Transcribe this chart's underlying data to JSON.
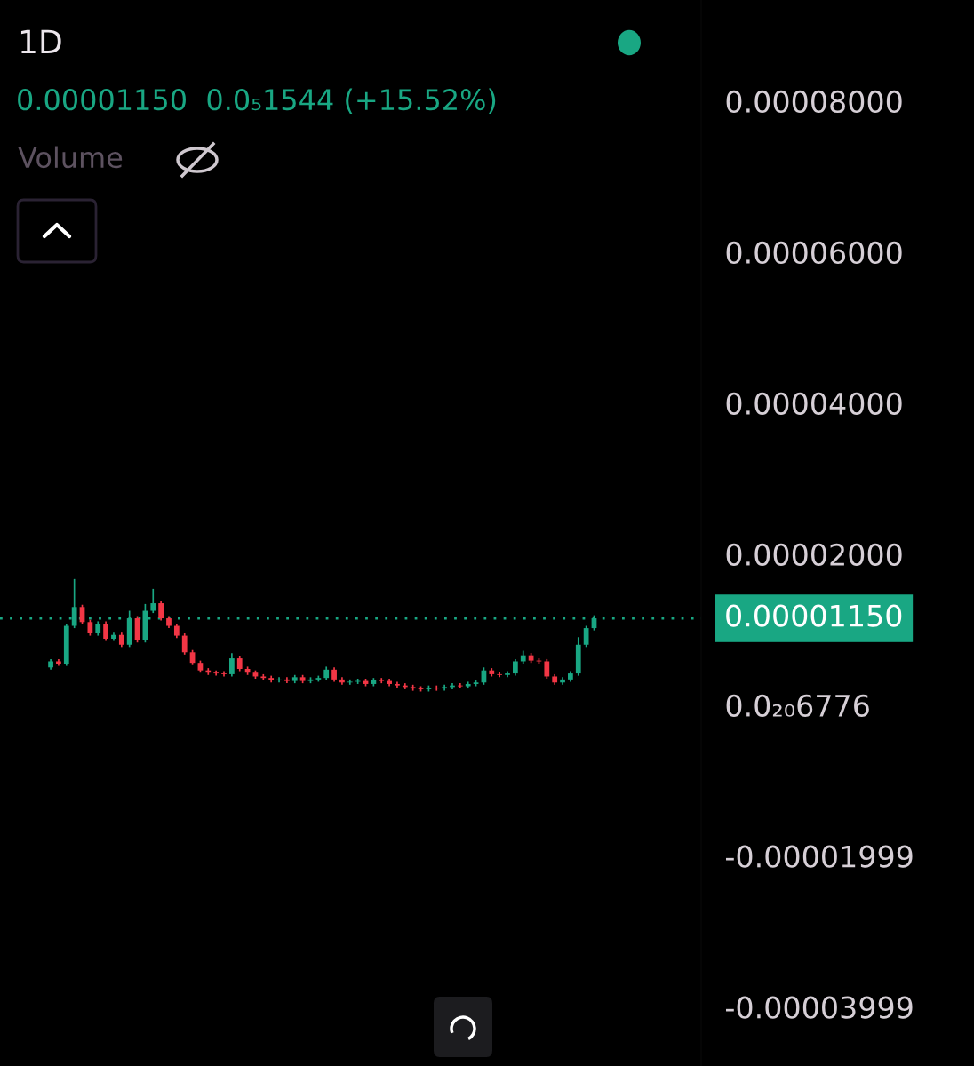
{
  "chart_data": {
    "type": "candlestick",
    "title": "1D",
    "annotations": [
      "0.00001150  0.0₅1544 (+15.52%)",
      "Volume"
    ],
    "categories": [
      null,
      null,
      null,
      null,
      null,
      null,
      null,
      null,
      null,
      null,
      null,
      null,
      null,
      null,
      null,
      null,
      null,
      null,
      null,
      null,
      null,
      null,
      null,
      null,
      null,
      null,
      null,
      null,
      null,
      null,
      null,
      null,
      null,
      null,
      null,
      null,
      null,
      null,
      null,
      null,
      null,
      null,
      null,
      null,
      null,
      null,
      null,
      null,
      null,
      null,
      null,
      null,
      null,
      null,
      null,
      null,
      null,
      null,
      null,
      null,
      null,
      null,
      null,
      null,
      null,
      null,
      null,
      null,
      null,
      null
    ],
    "ohlc": [
      [
        5e-06,
        6.1e-06,
        4.7e-06,
        5.8e-06
      ],
      [
        5.8e-06,
        6.1e-06,
        5.2e-06,
        5.5e-06
      ],
      [
        5.5e-06,
        1.08e-05,
        5.2e-06,
        1.05e-05
      ],
      [
        1.05e-05,
        1.67e-05,
        1.02e-05,
        1.3e-05
      ],
      [
        1.3e-05,
        1.33e-05,
        1.07e-05,
        1.1e-05
      ],
      [
        1.1e-05,
        1.13e-05,
        9.2e-06,
        9.5e-06
      ],
      [
        9.5e-06,
        1.11e-05,
        9.2e-06,
        1.08e-05
      ],
      [
        1.08e-05,
        1.11e-05,
        8.5e-06,
        8.8e-06
      ],
      [
        8.8e-06,
        9.6e-06,
        8.5e-06,
        9.3e-06
      ],
      [
        9.3e-06,
        9.6e-06,
        7.7e-06,
        8e-06
      ],
      [
        8e-06,
        1.25e-05,
        7.7e-06,
        1.15e-05
      ],
      [
        1.15e-05,
        1.18e-05,
        8.3e-06,
        8.6e-06
      ],
      [
        8.6e-06,
        1.34e-05,
        8.3e-06,
        1.25e-05
      ],
      [
        1.25e-05,
        1.54e-05,
        1.22e-05,
        1.35e-05
      ],
      [
        1.35e-05,
        1.38e-05,
        1.12e-05,
        1.15e-05
      ],
      [
        1.15e-05,
        1.18e-05,
        1.02e-05,
        1.05e-05
      ],
      [
        1.05e-05,
        1.08e-05,
        8.9e-06,
        9.2e-06
      ],
      [
        9.2e-06,
        9.5e-06,
        6.7e-06,
        7e-06
      ],
      [
        7e-06,
        7.3e-06,
        5.3e-06,
        5.6e-06
      ],
      [
        5.6e-06,
        5.9e-06,
        4.3e-06,
        4.6e-06
      ],
      [
        4.6e-06,
        4.9e-06,
        4e-06,
        4.3e-06
      ],
      [
        4.3e-06,
        4.6e-06,
        3.9e-06,
        4.2e-06
      ],
      [
        4.2e-06,
        4.5e-06,
        3.8e-06,
        4.1e-06
      ],
      [
        4.1e-06,
        6.9e-06,
        3.8e-06,
        6.2e-06
      ],
      [
        6.2e-06,
        6.5e-06,
        4.5e-06,
        4.8e-06
      ],
      [
        4.8e-06,
        5.1e-06,
        4e-06,
        4.3e-06
      ],
      [
        4.3e-06,
        4.6e-06,
        3.5e-06,
        3.8e-06
      ],
      [
        3.8e-06,
        4.1e-06,
        3.3e-06,
        3.6e-06
      ],
      [
        3.6e-06,
        3.9e-06,
        3e-06,
        3.3e-06
      ],
      [
        3.3e-06,
        3.7e-06,
        3e-06,
        3.4e-06
      ],
      [
        3.4e-06,
        3.7e-06,
        2.9e-06,
        3.2e-06
      ],
      [
        3.2e-06,
        4e-06,
        2.9e-06,
        3.7e-06
      ],
      [
        3.7e-06,
        4e-06,
        2.9e-06,
        3.2e-06
      ],
      [
        3.2e-06,
        3.7e-06,
        2.9e-06,
        3.4e-06
      ],
      [
        3.4e-06,
        3.9e-06,
        3.1e-06,
        3.6e-06
      ],
      [
        3.6e-06,
        5.1e-06,
        3.3e-06,
        4.7e-06
      ],
      [
        4.7e-06,
        5e-06,
        3.1e-06,
        3.4e-06
      ],
      [
        3.4e-06,
        3.7e-06,
        2.7e-06,
        3e-06
      ],
      [
        3e-06,
        3.4e-06,
        2.7e-06,
        3.1e-06
      ],
      [
        3.1e-06,
        3.5e-06,
        2.8e-06,
        3.2e-06
      ],
      [
        3.2e-06,
        3.5e-06,
        2.5e-06,
        2.8e-06
      ],
      [
        2.8e-06,
        3.6e-06,
        2.5e-06,
        3.3e-06
      ],
      [
        3.3e-06,
        3.6e-06,
        2.9e-06,
        3.2e-06
      ],
      [
        3.2e-06,
        3.5e-06,
        2.5e-06,
        2.8e-06
      ],
      [
        2.8e-06,
        3.1e-06,
        2.3e-06,
        2.6e-06
      ],
      [
        2.6e-06,
        2.9e-06,
        2.1e-06,
        2.4e-06
      ],
      [
        2.4e-06,
        2.7e-06,
        1.9e-06,
        2.2e-06
      ],
      [
        2.2e-06,
        2.5e-06,
        1.8e-06,
        2.1e-06
      ],
      [
        2.1e-06,
        2.6e-06,
        1.8e-06,
        2.3e-06
      ],
      [
        2.3e-06,
        2.6e-06,
        1.9e-06,
        2.2e-06
      ],
      [
        2.2e-06,
        2.7e-06,
        1.9e-06,
        2.4e-06
      ],
      [
        2.4e-06,
        2.9e-06,
        2.1e-06,
        2.6e-06
      ],
      [
        2.6e-06,
        2.9e-06,
        2.2e-06,
        2.5e-06
      ],
      [
        2.5e-06,
        3.1e-06,
        2.2e-06,
        2.8e-06
      ],
      [
        2.8e-06,
        3.3e-06,
        2.5e-06,
        3e-06
      ],
      [
        3e-06,
        5e-06,
        2.7e-06,
        4.6e-06
      ],
      [
        4.6e-06,
        4.9e-06,
        3.8e-06,
        4.1e-06
      ],
      [
        4.1e-06,
        4.4e-06,
        3.7e-06,
        4e-06
      ],
      [
        4e-06,
        4.5e-06,
        3.7e-06,
        4.2e-06
      ],
      [
        4.2e-06,
        6.1e-06,
        3.9e-06,
        5.8e-06
      ],
      [
        5.8e-06,
        7.2e-06,
        5.5e-06,
        6.6e-06
      ],
      [
        6.6e-06,
        6.9e-06,
        5.6e-06,
        5.9e-06
      ],
      [
        5.9e-06,
        6.2e-06,
        5.5e-06,
        5.8e-06
      ],
      [
        5.8e-06,
        6.1e-06,
        3.5e-06,
        3.8e-06
      ],
      [
        3.8e-06,
        4.1e-06,
        2.7e-06,
        3e-06
      ],
      [
        3e-06,
        3.7e-06,
        2.7e-06,
        3.4e-06
      ],
      [
        3.4e-06,
        4.5e-06,
        3.1e-06,
        4.2e-06
      ],
      [
        4.2e-06,
        9e-06,
        3.9e-06,
        8e-06
      ],
      [
        8e-06,
        1.05e-05,
        7.7e-06,
        1.02e-05
      ],
      [
        1.02e-05,
        1.19e-05,
        9.9e-06,
        1.15e-05
      ]
    ],
    "colors": [
      "#19a783",
      "#f23645",
      "#19a783",
      "#19a783",
      "#f23645",
      "#f23645",
      "#19a783",
      "#f23645",
      "#19a783",
      "#f23645",
      "#19a783",
      "#f23645",
      "#19a783",
      "#19a783",
      "#f23645",
      "#f23645",
      "#f23645",
      "#f23645",
      "#f23645",
      "#f23645",
      "#f23645",
      "#f23645",
      "#f23645",
      "#19a783",
      "#f23645",
      "#f23645",
      "#f23645",
      "#f23645",
      "#f23645",
      "#19a783",
      "#f23645",
      "#19a783",
      "#f23645",
      "#19a783",
      "#19a783",
      "#19a783",
      "#f23645",
      "#f23645",
      "#19a783",
      "#19a783",
      "#f23645",
      "#19a783",
      "#f23645",
      "#f23645",
      "#f23645",
      "#f23645",
      "#f23645",
      "#f23645",
      "#19a783",
      "#f23645",
      "#19a783",
      "#19a783",
      "#f23645",
      "#19a783",
      "#19a783",
      "#19a783",
      "#f23645",
      "#f23645",
      "#19a783",
      "#19a783",
      "#19a783",
      "#f23645",
      "#f23645",
      "#f23645",
      "#f23645",
      "#19a783",
      "#19a783",
      "#19a783",
      "#19a783",
      "#19a783"
    ],
    "ylim": [
      -4.78e-05,
      9.34e-05
    ],
    "yticks": [
      {
        "value": 8e-05,
        "label": "0.00008000"
      },
      {
        "value": 6e-05,
        "label": "0.00006000"
      },
      {
        "value": 4e-05,
        "label": "0.00004000"
      },
      {
        "value": 2e-05,
        "label": "0.00002000"
      },
      {
        "value": 0,
        "label": "0.0₂₀6776"
      },
      {
        "value": -1.999e-05,
        "label": "-0.00001999"
      },
      {
        "value": -3.999e-05,
        "label": "-0.00003999"
      }
    ],
    "ref_lines": [
      {
        "axis": "y",
        "value": 1.15e-05,
        "label": "0.00001150",
        "color": "#19a783",
        "line_style": "dotted"
      }
    ],
    "tick_labels": "y",
    "grid": false,
    "legend": false
  }
}
